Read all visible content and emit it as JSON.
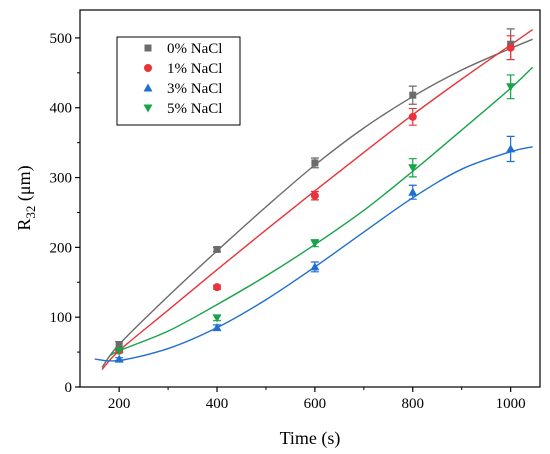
{
  "chart_data": {
    "type": "scatter",
    "title": "",
    "xlabel": "Time (s)",
    "ylabel_main": "R",
    "ylabel_sub": "32",
    "ylabel_unit": " (μm)",
    "xlim": [
      120,
      1060
    ],
    "ylim": [
      0,
      540
    ],
    "x_ticks": [
      200,
      400,
      600,
      800,
      1000
    ],
    "y_ticks": [
      0,
      100,
      200,
      300,
      400,
      500
    ],
    "grid": false,
    "legend_position": "top-left",
    "series": [
      {
        "name": "0% NaCl",
        "marker": "square",
        "color": "#6b6b6b",
        "x": [
          200,
          400,
          600,
          800,
          1000
        ],
        "y": [
          60,
          197,
          321,
          418,
          491
        ],
        "err": [
          5,
          3,
          7,
          13,
          22
        ],
        "fit_x": [
          165,
          200,
          300,
          400,
          500,
          600,
          700,
          800,
          900,
          1000,
          1045
        ],
        "fit_y": [
          28,
          61,
          130,
          195,
          258,
          318,
          371,
          416,
          454,
          485,
          498
        ]
      },
      {
        "name": "1% NaCl",
        "marker": "circle",
        "color": "#e8343a",
        "x": [
          200,
          400,
          600,
          800,
          1000
        ],
        "y": [
          52,
          143,
          274,
          387,
          486
        ],
        "err": [
          3,
          3,
          6,
          12,
          17
        ],
        "fit_x": [
          165,
          200,
          300,
          400,
          500,
          600,
          700,
          800,
          900,
          1000,
          1045
        ],
        "fit_y": [
          25,
          52,
          110,
          168,
          225,
          281,
          336,
          390,
          441,
          490,
          512
        ]
      },
      {
        "name": "3% NaCl",
        "marker": "triangle-up",
        "color": "#1f6fd1",
        "x": [
          200,
          400,
          600,
          800,
          1000
        ],
        "y": [
          40,
          85,
          172,
          279,
          341
        ],
        "err": [
          2,
          4,
          7,
          10,
          18
        ],
        "fit_x": [
          150,
          200,
          300,
          400,
          500,
          600,
          700,
          800,
          900,
          1000,
          1045
        ],
        "fit_y": [
          40,
          38,
          55,
          85,
          125,
          172,
          222,
          271,
          312,
          337,
          344
        ]
      },
      {
        "name": "5% NaCl",
        "marker": "triangle-down",
        "color": "#16a34a",
        "x": [
          200,
          400,
          600,
          800,
          1000
        ],
        "y": [
          52,
          99,
          206,
          314,
          430
        ],
        "err": [
          3,
          4,
          5,
          13,
          17
        ],
        "fit_x": [
          180,
          200,
          300,
          400,
          500,
          600,
          700,
          800,
          900,
          1000,
          1045
        ],
        "fit_y": [
          44,
          52,
          80,
          118,
          159,
          204,
          253,
          309,
          368,
          428,
          458
        ]
      }
    ]
  }
}
